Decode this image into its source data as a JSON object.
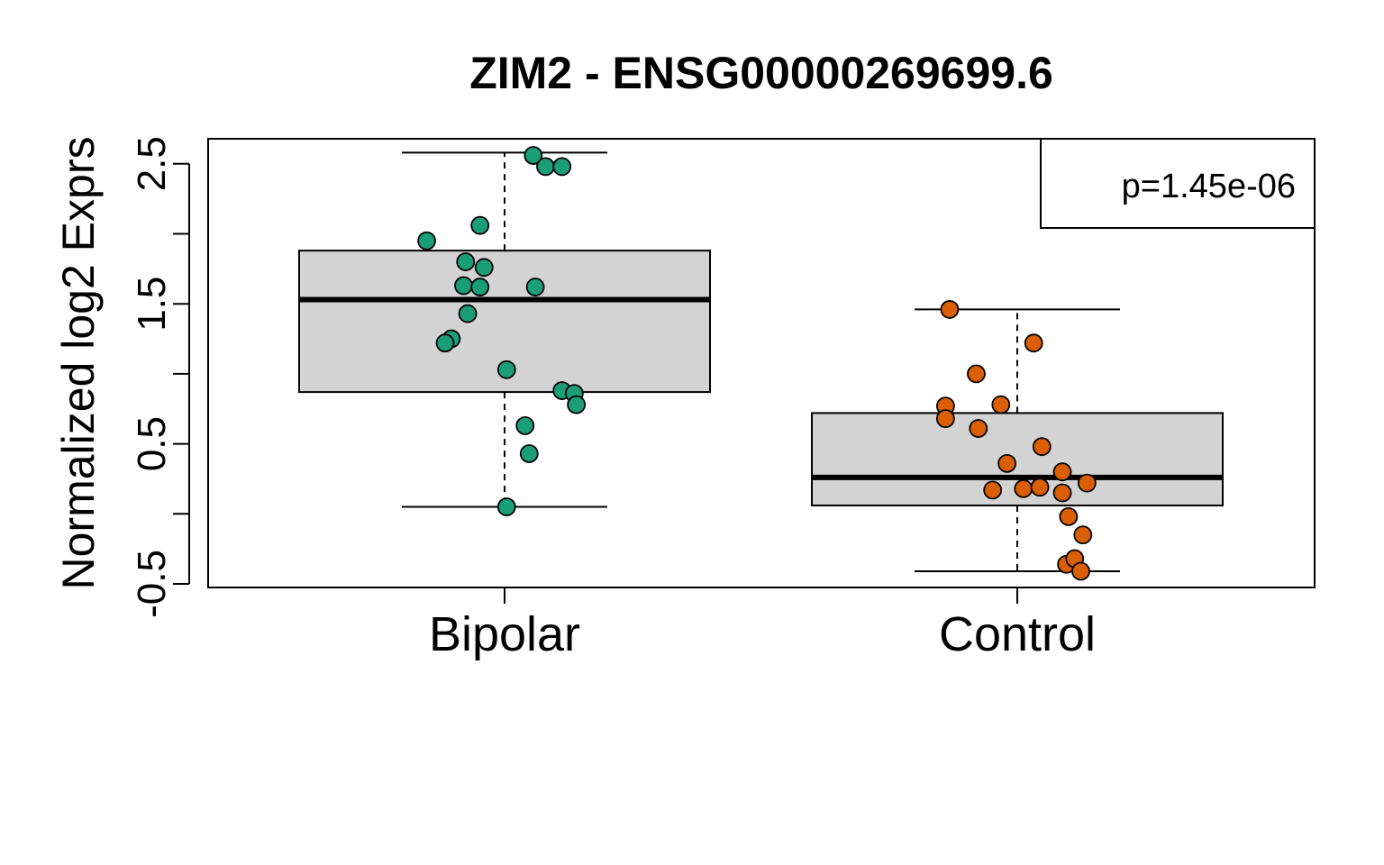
{
  "chart_data": {
    "type": "box",
    "title": "ZIM2 - ENSG00000269699.6",
    "ylabel": "Normalized log2 Exprs",
    "xlabel": "",
    "ylim": [
      -0.5,
      2.72
    ],
    "yticks": [
      -0.5,
      0,
      0.5,
      1,
      1.5,
      2,
      2.5
    ],
    "ytick_labels": [
      "-0.5",
      "0.5",
      "1.5",
      "2.5"
    ],
    "ytick_labeled_values": [
      -0.5,
      0.5,
      1.5,
      2.5
    ],
    "categories": [
      "Bipolar",
      "Control"
    ],
    "annotation": "p=1.45e-06",
    "legend_position": "top-right",
    "grid": false,
    "box_fill": "#d3d3d3",
    "series": [
      {
        "category": "Bipolar",
        "color": "#1b9e77",
        "stats": {
          "whisker_low": 0.05,
          "q1": 0.87,
          "median": 1.53,
          "q3": 1.88,
          "whisker_high": 2.58
        },
        "points": [
          {
            "x": -0.19,
            "y": 1.95
          },
          {
            "x": -0.1,
            "y": 1.63
          },
          {
            "x": -0.09,
            "y": 1.43
          },
          {
            "x": -0.13,
            "y": 1.25
          },
          {
            "x": -0.145,
            "y": 1.22
          },
          {
            "x": -0.095,
            "y": 1.8
          },
          {
            "x": -0.06,
            "y": 1.62
          },
          {
            "x": -0.05,
            "y": 1.76
          },
          {
            "x": -0.06,
            "y": 2.06
          },
          {
            "x": 0.07,
            "y": 2.56
          },
          {
            "x": 0.1,
            "y": 2.48
          },
          {
            "x": 0.14,
            "y": 2.48
          },
          {
            "x": 0.075,
            "y": 1.62
          },
          {
            "x": 0.005,
            "y": 1.03
          },
          {
            "x": 0.14,
            "y": 0.88
          },
          {
            "x": 0.17,
            "y": 0.86
          },
          {
            "x": 0.175,
            "y": 0.78
          },
          {
            "x": 0.05,
            "y": 0.63
          },
          {
            "x": 0.06,
            "y": 0.43
          },
          {
            "x": 0.005,
            "y": 0.05
          }
        ]
      },
      {
        "category": "Control",
        "color": "#d95f02",
        "stats": {
          "whisker_low": -0.41,
          "q1": 0.06,
          "median": 0.26,
          "q3": 0.72,
          "whisker_high": 1.46
        },
        "points": [
          {
            "x": -0.165,
            "y": 1.46
          },
          {
            "x": 0.04,
            "y": 1.22
          },
          {
            "x": -0.1,
            "y": 1.0
          },
          {
            "x": -0.175,
            "y": 0.77
          },
          {
            "x": -0.04,
            "y": 0.78
          },
          {
            "x": -0.175,
            "y": 0.68
          },
          {
            "x": -0.095,
            "y": 0.61
          },
          {
            "x": 0.06,
            "y": 0.48
          },
          {
            "x": -0.025,
            "y": 0.36
          },
          {
            "x": 0.11,
            "y": 0.3
          },
          {
            "x": 0.17,
            "y": 0.22
          },
          {
            "x": -0.06,
            "y": 0.17
          },
          {
            "x": 0.015,
            "y": 0.18
          },
          {
            "x": 0.055,
            "y": 0.19
          },
          {
            "x": 0.11,
            "y": 0.15
          },
          {
            "x": 0.125,
            "y": -0.02
          },
          {
            "x": 0.16,
            "y": -0.15
          },
          {
            "x": 0.12,
            "y": -0.36
          },
          {
            "x": 0.14,
            "y": -0.32
          },
          {
            "x": 0.155,
            "y": -0.41
          }
        ]
      }
    ]
  }
}
